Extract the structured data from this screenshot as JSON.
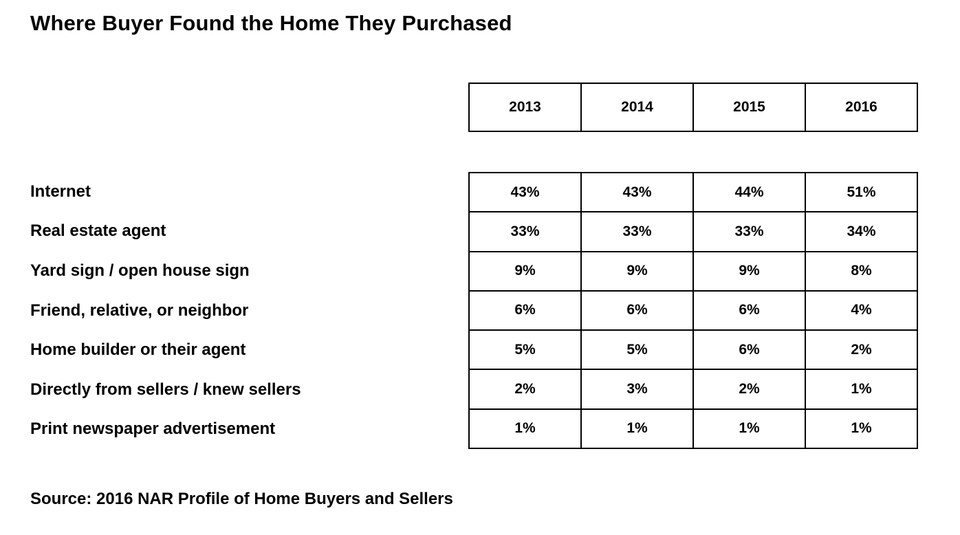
{
  "title": "Where Buyer Found the Home They Purchased",
  "source": "Source: 2016 NAR Profile of Home Buyers and Sellers",
  "chart_data": {
    "type": "table",
    "title": "Where Buyer Found the Home They Purchased",
    "columns": [
      "2013",
      "2014",
      "2015",
      "2016"
    ],
    "rows": [
      {
        "label": "Internet",
        "values": [
          "43%",
          "43%",
          "44%",
          "51%"
        ]
      },
      {
        "label": "Real estate agent",
        "values": [
          "33%",
          "33%",
          "33%",
          "34%"
        ]
      },
      {
        "label": "Yard sign / open house sign",
        "values": [
          "9%",
          "9%",
          "9%",
          "8%"
        ]
      },
      {
        "label": "Friend, relative, or neighbor",
        "values": [
          "6%",
          "6%",
          "6%",
          "4%"
        ]
      },
      {
        "label": "Home builder or their agent",
        "values": [
          "5%",
          "5%",
          "6%",
          "2%"
        ]
      },
      {
        "label": "Directly from sellers / knew sellers",
        "values": [
          "2%",
          "3%",
          "2%",
          "1%"
        ]
      },
      {
        "label": "Print newspaper advertisement",
        "values": [
          "1%",
          "1%",
          "1%",
          "1%"
        ]
      }
    ],
    "source": "Source: 2016 NAR Profile of Home Buyers and Sellers",
    "grid": true,
    "legend_position": "none",
    "colors": {
      "border": "#000000",
      "background": "#ffffff",
      "text": "#000000"
    }
  }
}
